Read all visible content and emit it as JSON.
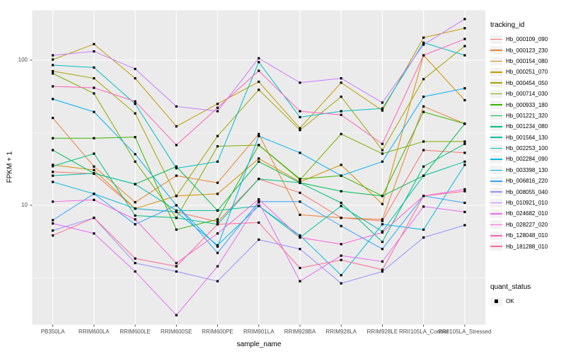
{
  "figure": {
    "y_axis_title": "FPKM + 1",
    "x_axis_title": "sample_name",
    "legend_tracking_title": "tracking_id",
    "legend_quant_title": "quant_status",
    "quant_ok_label": "OK",
    "colors": {
      "panel_background": "#EBEBEB",
      "gridline": "#FFFFFF",
      "axis_text": "#4D4D4D",
      "axis_title": "#000000",
      "tick_mark": "#333333",
      "legend_key_background": "#F2F2F2",
      "point_marker": "#000000"
    }
  },
  "chart_data": {
    "type": "line",
    "title": "",
    "xlabel": "sample_name",
    "ylabel": "FPKM + 1",
    "y_scale": "log10",
    "ylim": [
      1.5,
      220
    ],
    "y_major_ticks": [
      10,
      100
    ],
    "y_minor_gridlines": [
      3.162,
      31.62
    ],
    "grid": true,
    "legend_position": "right",
    "point_shape": "small-black-square",
    "quant_status": "OK",
    "categories": [
      "PB350LA",
      "RRIM600LA",
      "RRIM600LE",
      "RRIM600SE",
      "RRIM600PE",
      "RRIM901LA",
      "RRIM928BA",
      "RRIM928LA",
      "RRIM928LE",
      "RRII105LA_Control",
      "RRII105LA_Stressed"
    ],
    "series": [
      {
        "name": "Hb_000109_090",
        "color": "#F8766D",
        "values": [
          17,
          16.5,
          9.5,
          9,
          7.7,
          15.2,
          12.2,
          8.2,
          7.8,
          24,
          23
        ]
      },
      {
        "name": "Hb_000123_230",
        "color": "#EA8331",
        "values": [
          40,
          18.5,
          10.5,
          16,
          14.3,
          31,
          8.6,
          8.2,
          8,
          48,
          36.5
        ]
      },
      {
        "name": "Hb_000154_080",
        "color": "#D89000",
        "values": [
          19,
          17.5,
          9.5,
          11.6,
          12,
          21,
          14.5,
          19,
          10.2,
          108,
          53
        ]
      },
      {
        "name": "Hb_000251_070",
        "color": "#C09B00",
        "values": [
          101,
          129,
          75,
          35,
          50,
          71,
          34,
          70,
          45,
          143,
          166
        ]
      },
      {
        "name": "Hb_000454_050",
        "color": "#A3A500",
        "values": [
          84,
          75,
          43,
          11.6,
          30,
          62.5,
          33,
          56,
          24,
          74,
          125
        ]
      },
      {
        "name": "Hb_000714_030",
        "color": "#7CAE00",
        "values": [
          81,
          59,
          20,
          8.2,
          25.5,
          26,
          15,
          31,
          22.7,
          27.5,
          27.5
        ]
      },
      {
        "name": "Hb_000933_180",
        "color": "#39B600",
        "values": [
          29,
          29,
          29.5,
          6.8,
          8,
          26,
          15.2,
          16,
          11.6,
          44,
          36.5
        ]
      },
      {
        "name": "Hb_001221_320",
        "color": "#00BB4E",
        "values": [
          24,
          16.6,
          14,
          18.5,
          9.2,
          20,
          14.3,
          12.5,
          11.6,
          16,
          36.5
        ]
      },
      {
        "name": "Hb_001234_080",
        "color": "#00BF7D",
        "values": [
          18.6,
          22.7,
          8.5,
          8.2,
          7.4,
          15.2,
          14.3,
          10.4,
          5.6,
          18.5,
          26.5
        ]
      },
      {
        "name": "Hb_001564_130",
        "color": "#00C1A3",
        "values": [
          16,
          16.6,
          14,
          9.2,
          9.2,
          9.9,
          6,
          9.9,
          6.6,
          16,
          20
        ]
      },
      {
        "name": "Hb_002253_100",
        "color": "#00BFC4",
        "values": [
          92.5,
          89,
          50,
          18,
          20,
          97,
          40.5,
          44.5,
          46.5,
          132,
          108
        ]
      },
      {
        "name": "Hb_002284_090",
        "color": "#00BAE0",
        "values": [
          14.5,
          12,
          9.5,
          9,
          5.3,
          9.9,
          6.2,
          3.3,
          7.4,
          6.8,
          19
        ]
      },
      {
        "name": "Hb_003398_130",
        "color": "#00B0F6",
        "values": [
          54,
          44,
          22.5,
          10,
          5.2,
          30,
          23,
          16,
          20,
          56,
          64
        ]
      },
      {
        "name": "Hb_006816_220",
        "color": "#35A2FF",
        "values": [
          7.9,
          12,
          7.4,
          10,
          4.7,
          10.6,
          10.6,
          7.2,
          5,
          11.6,
          10.4
        ]
      },
      {
        "name": "Hb_008055_040",
        "color": "#9590FF",
        "values": [
          6.7,
          8.2,
          4,
          3.5,
          3,
          5.8,
          5,
          2.9,
          3.5,
          6,
          7.3
        ]
      },
      {
        "name": "Hb_010921_010",
        "color": "#C77CFF",
        "values": [
          108,
          115,
          87,
          48,
          44.5,
          103,
          70,
          75,
          51,
          128,
          192
        ]
      },
      {
        "name": "Hb_024682_010",
        "color": "#E76BF3",
        "values": [
          7.5,
          6.4,
          3.5,
          1.75,
          3.8,
          10.5,
          3,
          4.5,
          4.1,
          9.8,
          9
        ]
      },
      {
        "name": "Hb_028227_020",
        "color": "#FA62DB",
        "values": [
          10.6,
          10.9,
          8,
          4,
          6.4,
          11,
          6,
          5.4,
          6.5,
          11.6,
          12.9
        ]
      },
      {
        "name": "Hb_128048_010",
        "color": "#FF62BC",
        "values": [
          66,
          64.5,
          52,
          26,
          47,
          84.5,
          44.5,
          42,
          26.5,
          108,
          140
        ]
      },
      {
        "name": "Hb_181288_010",
        "color": "#FF6A98",
        "values": [
          6.2,
          8.2,
          4.3,
          3.8,
          7.4,
          7.6,
          3.7,
          4.2,
          3.6,
          11.6,
          12.5
        ]
      }
    ]
  }
}
